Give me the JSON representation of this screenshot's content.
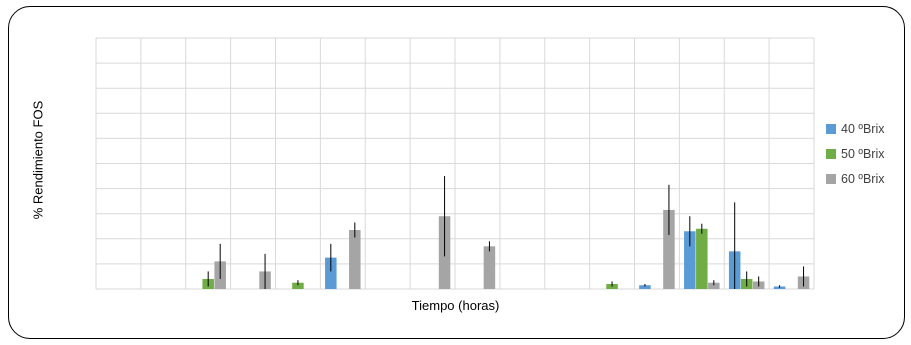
{
  "chart_data": {
    "type": "bar",
    "title": "",
    "xlabel": "Tiempo (horas)",
    "ylabel": "% Rendimiento FOS",
    "ylim": [
      0,
      10
    ],
    "grid": true,
    "legend_position": "right",
    "categories": [
      "",
      "",
      "",
      "",
      "",
      "",
      "",
      "",
      "",
      "",
      "",
      "",
      "",
      "",
      "",
      ""
    ],
    "series": [
      {
        "name": "40 ºBrix",
        "color": "#5b9bd5",
        "values": [
          0,
          0,
          0,
          0,
          0,
          1.25,
          0,
          0,
          0,
          0,
          0,
          0,
          0.15,
          2.3,
          1.5,
          0.1
        ],
        "errors": [
          0,
          0,
          0,
          0,
          0,
          0.55,
          0,
          0,
          0,
          0,
          0,
          0,
          0.05,
          0.6,
          1.95,
          0.05
        ]
      },
      {
        "name": "50 ºBrix",
        "color": "#70ad47",
        "values": [
          0,
          0,
          0.4,
          0,
          0.25,
          0,
          0,
          0,
          0,
          0,
          0,
          0.2,
          0,
          2.4,
          0.4,
          0
        ],
        "errors": [
          0,
          0,
          0.3,
          0,
          0.1,
          0,
          0,
          0,
          0,
          0,
          0,
          0.1,
          0,
          0.2,
          0.3,
          0
        ]
      },
      {
        "name": "60 ºBrix",
        "color": "#a5a5a5",
        "values": [
          0,
          0,
          1.1,
          0.7,
          0,
          2.35,
          0,
          2.9,
          1.7,
          0,
          0,
          0,
          3.15,
          0.25,
          0.3,
          0.5
        ],
        "errors": [
          0,
          0,
          0.7,
          0.7,
          0,
          0.3,
          0,
          1.6,
          0.2,
          0,
          0,
          0,
          1.0,
          0.1,
          0.2,
          0.4
        ]
      }
    ]
  }
}
